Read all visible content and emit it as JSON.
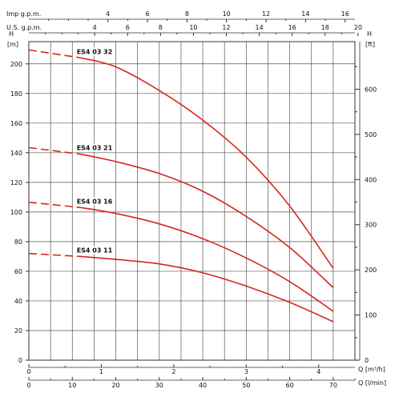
{
  "chart_data": {
    "type": "line",
    "x_unit_main": "Q [l/min]",
    "x_unit_m3h": "Q [m³/h]",
    "x_unit_imp": "Imp g.p.m.",
    "x_unit_us": "U.S. g.p.m.",
    "y_unit_left_top": "H",
    "y_unit_left_bottom": "[m]",
    "y_unit_right_top": "H",
    "y_unit_right_bottom": "[ft]",
    "xlim": [
      0,
      75
    ],
    "ylim": [
      0,
      215
    ],
    "x_ticks_lpm": [
      "0",
      "10",
      "20",
      "30",
      "40",
      "50",
      "60",
      "70"
    ],
    "x_ticks_m3h": [
      "0",
      "1",
      "2",
      "3",
      "4"
    ],
    "x_ticks_imp": [
      "4",
      "6",
      "8",
      "10",
      "12",
      "14",
      "16"
    ],
    "x_ticks_us": [
      "4",
      "6",
      "8",
      "10",
      "12",
      "14",
      "16",
      "18",
      "20"
    ],
    "y_ticks_m": [
      "0",
      "20",
      "40",
      "60",
      "80",
      "100",
      "120",
      "140",
      "160",
      "180",
      "200"
    ],
    "y_ticks_ft": [
      "0",
      "100",
      "200",
      "300",
      "400",
      "500",
      "600"
    ],
    "grid": true,
    "line_color": "#d7261e",
    "series": [
      {
        "name": "ES4 03 32",
        "dashed_x": [
          0,
          12
        ],
        "x": [
          12,
          20,
          30,
          40,
          50,
          60,
          70
        ],
        "y": [
          204,
          198,
          182,
          162,
          137,
          104,
          62
        ]
      },
      {
        "name": "ES4 03 21",
        "dashed_x": [
          0,
          12
        ],
        "x": [
          12,
          20,
          30,
          40,
          50,
          60,
          70
        ],
        "y": [
          139,
          134,
          126,
          114,
          97,
          76,
          49
        ]
      },
      {
        "name": "ES4 03 16",
        "dashed_x": [
          0,
          12
        ],
        "x": [
          12,
          20,
          30,
          40,
          50,
          60,
          70
        ],
        "y": [
          103,
          99,
          92,
          82,
          69,
          53,
          33
        ]
      },
      {
        "name": "ES4 03 11",
        "dashed_x": [
          0,
          12
        ],
        "x": [
          0,
          12,
          20,
          30,
          40,
          50,
          60,
          70
        ],
        "y": [
          72,
          70,
          68,
          65,
          59,
          50,
          39,
          26
        ]
      }
    ]
  }
}
